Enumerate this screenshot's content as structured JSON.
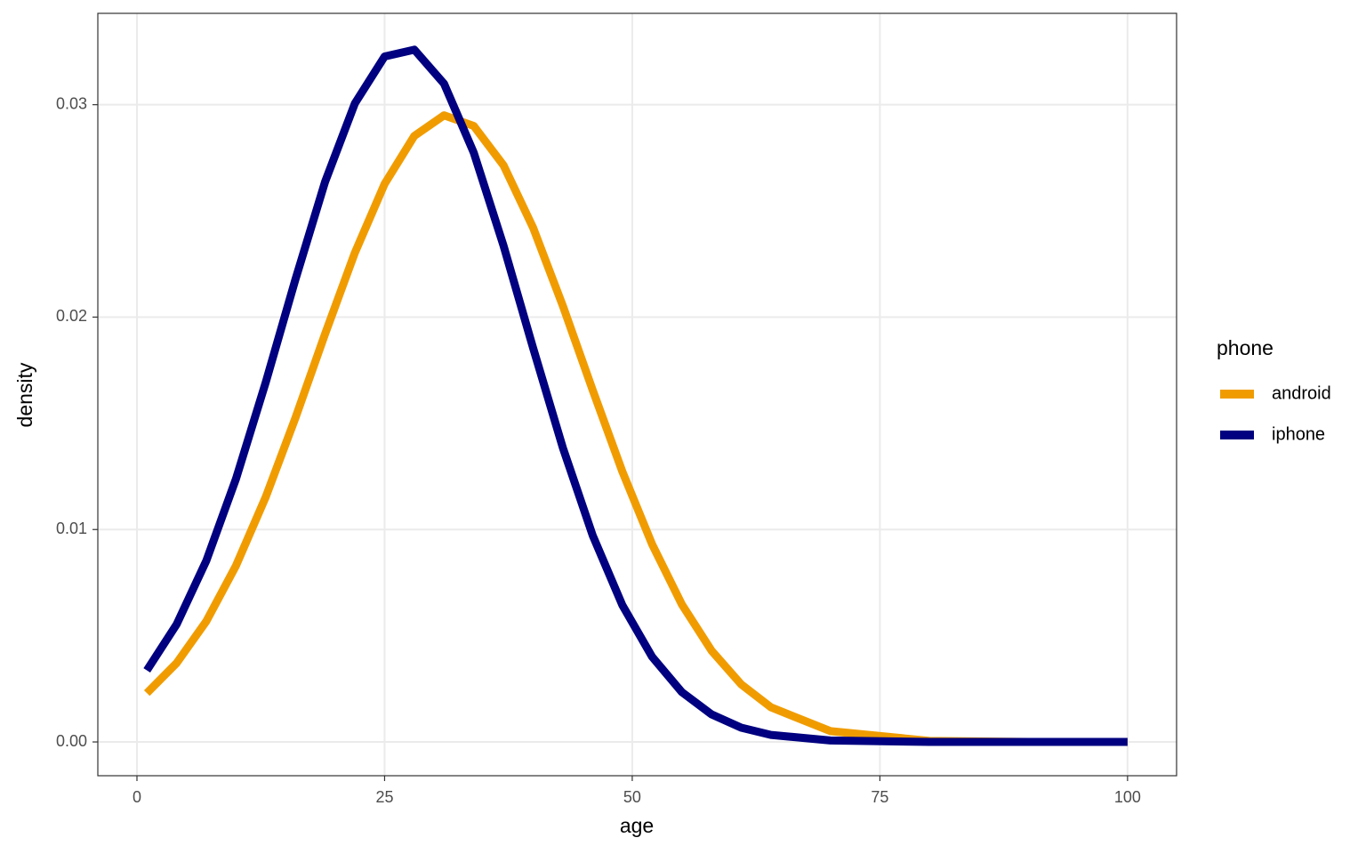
{
  "chart_data": {
    "type": "line",
    "x_label": "age",
    "y_label": "density",
    "x": [
      1,
      4,
      7,
      10,
      13,
      16,
      19,
      22,
      25,
      28,
      31,
      34,
      37,
      40,
      43,
      46,
      49,
      52,
      55,
      58,
      61,
      64,
      70,
      80,
      90,
      100
    ],
    "series": [
      {
        "name": "android",
        "color": "#f09c00",
        "values": [
          0.0023,
          0.00371,
          0.00568,
          0.0083,
          0.01153,
          0.01526,
          0.01922,
          0.02303,
          0.02627,
          0.02853,
          0.0295,
          0.029,
          0.02715,
          0.0242,
          0.02052,
          0.01657,
          0.01273,
          0.00931,
          0.00648,
          0.0043,
          0.00271,
          0.00163,
          0.00051,
          5e-05,
          0,
          0
        ]
      },
      {
        "name": "iphone",
        "color": "#000080",
        "values": [
          0.00337,
          0.00553,
          0.00853,
          0.01239,
          0.01693,
          0.02178,
          0.02638,
          0.03006,
          0.03227,
          0.03259,
          0.03099,
          0.02774,
          0.02337,
          0.01853,
          0.01384,
          0.00973,
          0.00644,
          0.00401,
          0.00235,
          0.0013,
          0.00067,
          0.00033,
          7e-05,
          0,
          0,
          0
        ]
      }
    ],
    "xlim": [
      -3.95,
      104.95
    ],
    "xticks": [
      0,
      25,
      50,
      75,
      100
    ],
    "ylim": [
      -0.00159,
      0.0343
    ],
    "yticks": [
      {
        "value": 0,
        "label": "0.00"
      },
      0.01,
      0.02,
      0.03
    ],
    "grid": true,
    "legend_title": "phone",
    "legend_position": "right"
  }
}
